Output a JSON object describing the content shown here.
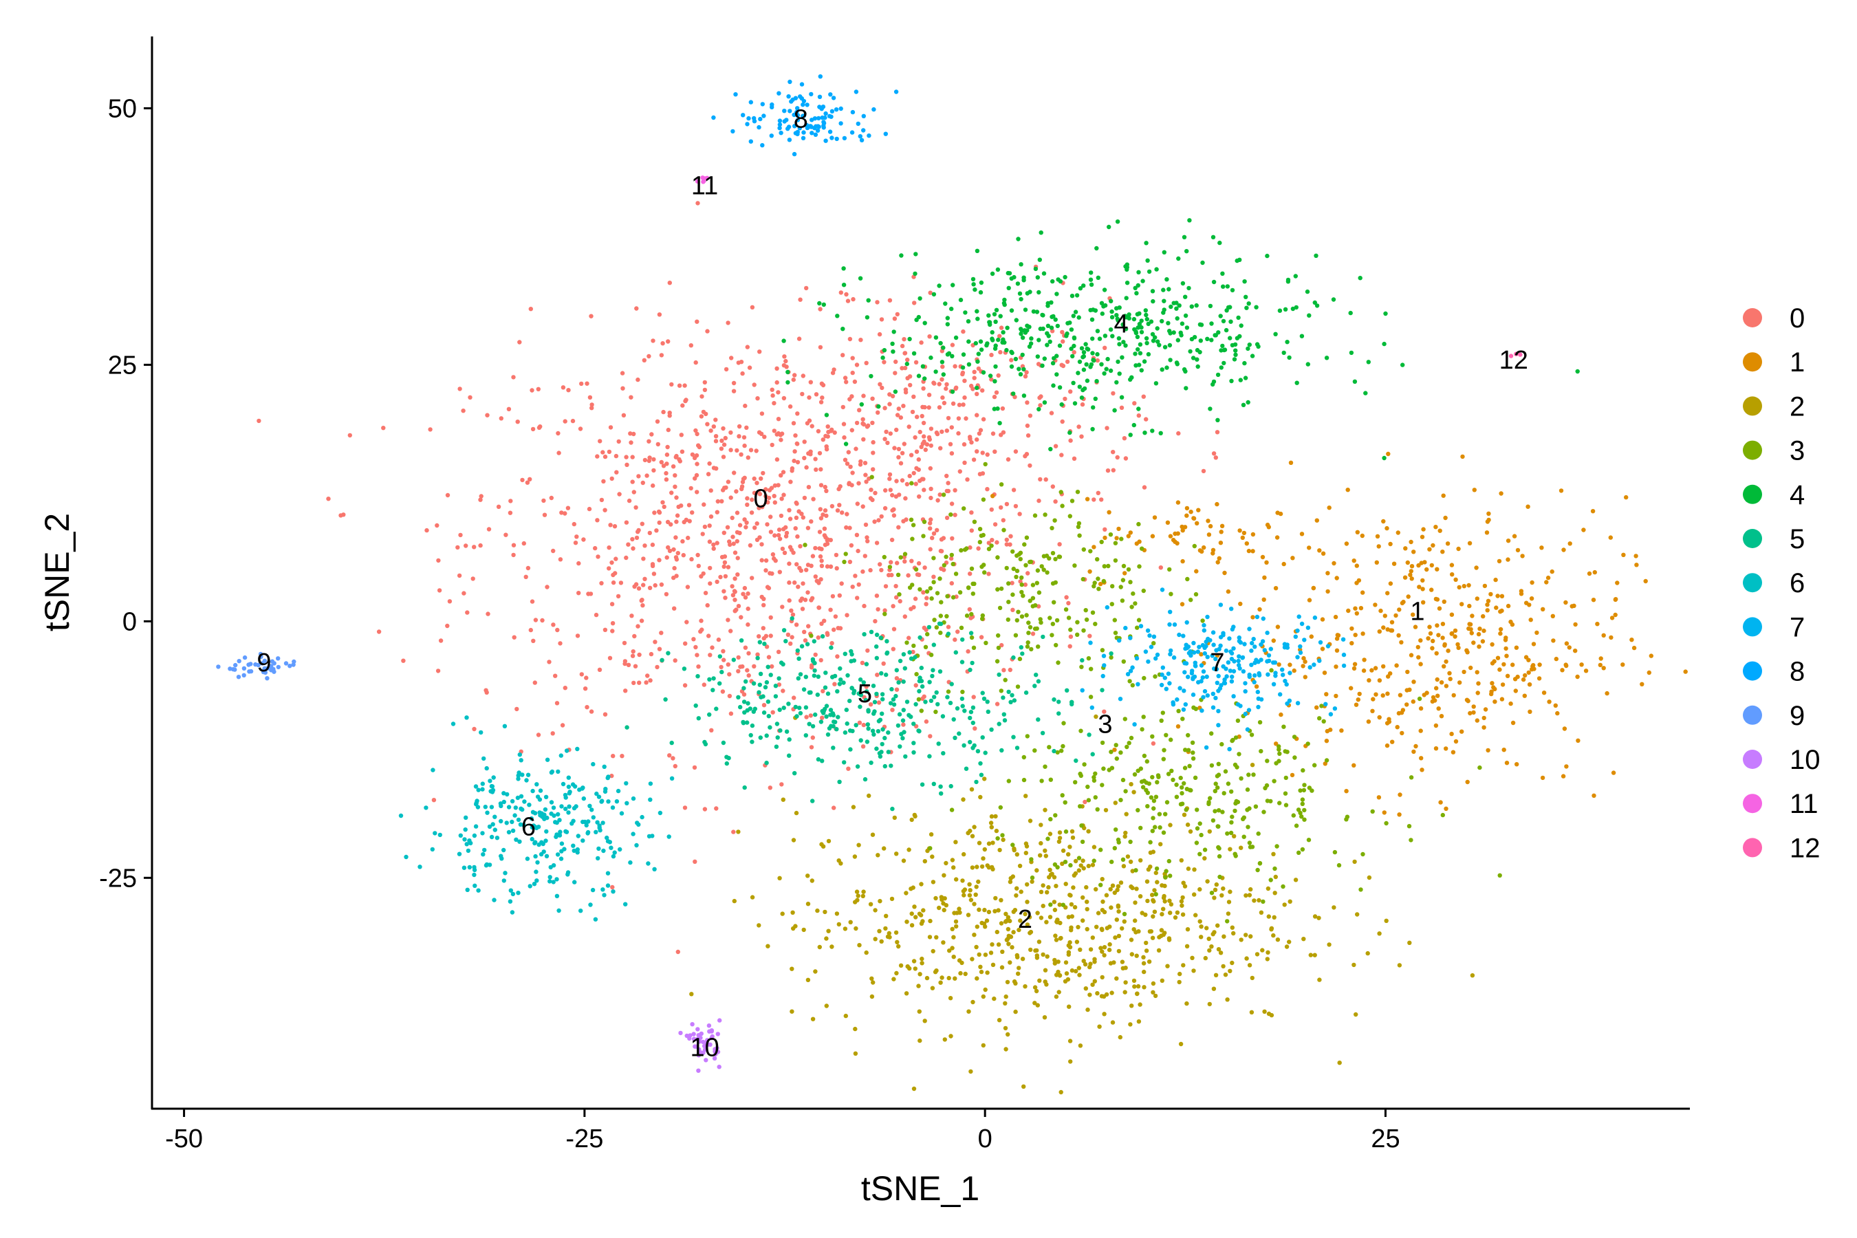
{
  "chart_data": {
    "type": "scatter",
    "xlabel": "tSNE_1",
    "ylabel": "tSNE_2",
    "xlim": [
      -52,
      44
    ],
    "ylim": [
      -47.5,
      57
    ],
    "xticks": [
      {
        "value": -50,
        "label": "-50"
      },
      {
        "value": -25,
        "label": "-25"
      },
      {
        "value": 0,
        "label": "0"
      },
      {
        "value": 25,
        "label": "25"
      }
    ],
    "yticks": [
      {
        "value": 50,
        "label": "50"
      },
      {
        "value": 25,
        "label": "25"
      },
      {
        "value": 0,
        "label": "0"
      },
      {
        "value": -25,
        "label": "-25"
      }
    ],
    "grid": false,
    "legend_position": "right",
    "point_size": "small",
    "series": [
      {
        "name": "0",
        "color": "#F8766D",
        "label_pos": [
          -14,
          12
        ],
        "clusters": [
          {
            "cx": -14,
            "cy": 8,
            "sx": 9,
            "sy": 10,
            "n": 1050
          },
          {
            "cx": -2,
            "cy": 20,
            "sx": 6,
            "sy": 5,
            "n": 250
          }
        ]
      },
      {
        "name": "1",
        "color": "#DE8C00",
        "label_pos": [
          27,
          1
        ],
        "clusters": [
          {
            "cx": 28,
            "cy": -2,
            "sx": 6,
            "sy": 7,
            "n": 450
          },
          {
            "cx": 14,
            "cy": 8,
            "sx": 4,
            "sy": 2,
            "n": 70
          }
        ]
      },
      {
        "name": "2",
        "color": "#B79F00",
        "label_pos": [
          2.5,
          -29
        ],
        "clusters": [
          {
            "cx": 4,
            "cy": -29,
            "sx": 8,
            "sy": 5.5,
            "n": 700
          }
        ]
      },
      {
        "name": "3",
        "color": "#7CAE00",
        "label_pos": [
          7.5,
          -10
        ],
        "clusters": [
          {
            "cx": 2,
            "cy": 3,
            "sx": 4.5,
            "sy": 5,
            "n": 250
          },
          {
            "cx": 13,
            "cy": -17,
            "sx": 6,
            "sy": 4.5,
            "n": 300
          }
        ]
      },
      {
        "name": "4",
        "color": "#00BA38",
        "label_pos": [
          8.5,
          29
        ],
        "clusters": [
          {
            "cx": 7,
            "cy": 28,
            "sx": 7,
            "sy": 4,
            "n": 500
          }
        ]
      },
      {
        "name": "5",
        "color": "#00C08B",
        "label_pos": [
          -7.5,
          -7
        ],
        "clusters": [
          {
            "cx": -7,
            "cy": -8,
            "sx": 6,
            "sy": 3.5,
            "n": 350
          }
        ]
      },
      {
        "name": "6",
        "color": "#00BFC4",
        "label_pos": [
          -28.5,
          -20
        ],
        "clusters": [
          {
            "cx": -28,
            "cy": -20,
            "sx": 3.5,
            "sy": 3.5,
            "n": 280
          }
        ]
      },
      {
        "name": "7",
        "color": "#00B4F0",
        "label_pos": [
          14.5,
          -4
        ],
        "clusters": [
          {
            "cx": 15,
            "cy": -4,
            "sx": 3.5,
            "sy": 2.5,
            "n": 230
          }
        ]
      },
      {
        "name": "8",
        "color": "#00A9FF",
        "label_pos": [
          -11.5,
          49
        ],
        "clusters": [
          {
            "cx": -11,
            "cy": 49,
            "sx": 2.2,
            "sy": 1.5,
            "n": 110
          }
        ]
      },
      {
        "name": "9",
        "color": "#619CFF",
        "label_pos": [
          -45,
          -4
        ],
        "clusters": [
          {
            "cx": -45,
            "cy": -4.5,
            "sx": 1.2,
            "sy": 0.5,
            "n": 40
          }
        ]
      },
      {
        "name": "10",
        "color": "#C77CFF",
        "label_pos": [
          -17.5,
          -41.5
        ],
        "clusters": [
          {
            "cx": -17.5,
            "cy": -41,
            "sx": 0.5,
            "sy": 1,
            "n": 45
          }
        ]
      },
      {
        "name": "11",
        "color": "#F564E3",
        "label_pos": [
          -17.5,
          42.5
        ],
        "clusters": [
          {
            "cx": -17.5,
            "cy": 43,
            "sx": 0.3,
            "sy": 0.15,
            "n": 6
          }
        ]
      },
      {
        "name": "12",
        "color": "#FF64B0",
        "label_pos": [
          33,
          25.5
        ],
        "clusters": [
          {
            "cx": 33,
            "cy": 26,
            "sx": 0.15,
            "sy": 0.15,
            "n": 3
          }
        ]
      }
    ]
  }
}
